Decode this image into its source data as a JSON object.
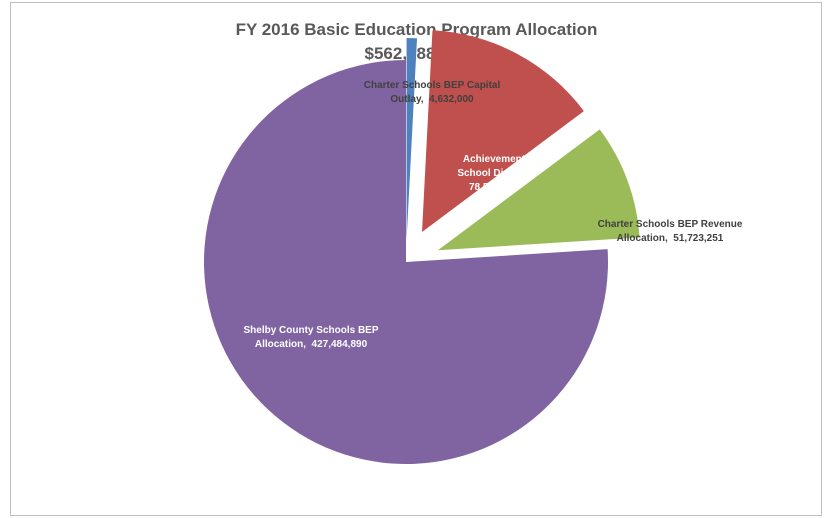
{
  "chart_data": {
    "type": "pie",
    "title": "FY 2016 Basic Education Program Allocation",
    "subtitle": "$562,388,000",
    "slices": [
      {
        "label_lines": [
          "Charter Schools BEP Capital",
          "Outlay,  4,632,000"
        ],
        "value": 4632000,
        "color": "#4f81bd",
        "label_color": "#404040"
      },
      {
        "label_lines": [
          "Achievement",
          "School District,",
          "78,547,859"
        ],
        "value": 78547859,
        "color": "#c0504d",
        "label_color": "#ffffff"
      },
      {
        "label_lines": [
          "Charter Schools BEP Revenue",
          "Allocation,  51,723,251"
        ],
        "value": 51723251,
        "color": "#9bbb59",
        "label_color": "#404040"
      },
      {
        "label_lines": [
          "Shelby County Schools BEP",
          "Allocation,  427,484,890"
        ],
        "value": 427484890,
        "color": "#8064a2",
        "label_color": "#ffffff"
      }
    ]
  }
}
